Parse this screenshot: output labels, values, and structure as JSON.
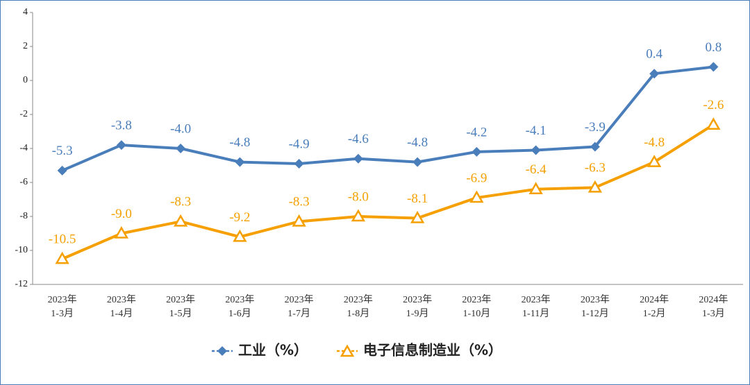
{
  "chart_data": {
    "type": "line",
    "categories": [
      [
        "2023年",
        "1-3月"
      ],
      [
        "2023年",
        "1-4月"
      ],
      [
        "2023年",
        "1-5月"
      ],
      [
        "2023年",
        "1-6月"
      ],
      [
        "2023年",
        "1-7月"
      ],
      [
        "2023年",
        "1-8月"
      ],
      [
        "2023年",
        "1-9月"
      ],
      [
        "2023年",
        "1-10月"
      ],
      [
        "2023年",
        "1-11月"
      ],
      [
        "2023年",
        "1-12月"
      ],
      [
        "2024年",
        "1-2月"
      ],
      [
        "2024年",
        "1-3月"
      ]
    ],
    "series": [
      {
        "name": "工业（%）",
        "color": "#4a7ebb",
        "marker": "diamond",
        "values": [
          -5.3,
          -3.8,
          -4,
          -4.8,
          -4.9,
          -4.6,
          -4.8,
          -4.2,
          -4.1,
          -3.9,
          0.4,
          0.8
        ],
        "value_labels": [
          "-5.3",
          "-3.8",
          "-4.0",
          "-4.8",
          "-4.9",
          "-4.6",
          "-4.8",
          "-4.2",
          "-4.1",
          "-3.9",
          "0.4",
          "0.8"
        ]
      },
      {
        "name": "电子信息制造业（%）",
        "color": "#f5a000",
        "marker": "triangle",
        "values": [
          -10.5,
          -9,
          -8.3,
          -9.2,
          -8.3,
          -8,
          -8.1,
          -6.9,
          -6.4,
          -6.3,
          -4.8,
          -2.6
        ],
        "value_labels": [
          "-10.5",
          "-9.0",
          "-8.3",
          "-9.2",
          "-8.3",
          "-8.0",
          "-8.1",
          "-6.9",
          "-6.4",
          "-6.3",
          "-4.8",
          "-2.6"
        ]
      }
    ],
    "ylim": [
      -12,
      4
    ],
    "yticks": [
      -12,
      -10,
      -8,
      -6,
      -4,
      -2,
      0,
      2,
      4
    ],
    "grid": false,
    "legend": "bottom"
  }
}
